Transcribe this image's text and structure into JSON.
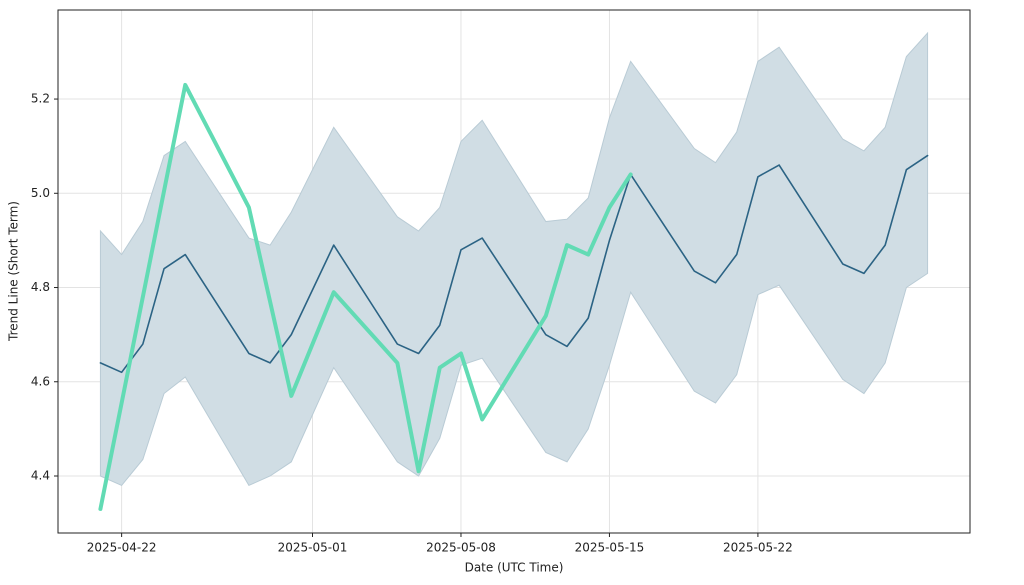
{
  "chart_data": {
    "type": "line",
    "x_label": "Date (UTC Time)",
    "y_label": "Trend Line (Short Term)",
    "x": [
      "2025-04-21",
      "2025-04-22",
      "2025-04-23",
      "2025-04-24",
      "2025-04-25",
      "2025-04-28",
      "2025-04-29",
      "2025-04-30",
      "2025-05-02",
      "2025-05-05",
      "2025-05-06",
      "2025-05-07",
      "2025-05-08",
      "2025-05-09",
      "2025-05-12",
      "2025-05-13",
      "2025-05-14",
      "2025-05-15",
      "2025-05-16",
      "2025-05-19",
      "2025-05-20",
      "2025-05-21",
      "2025-05-22",
      "2025-05-23",
      "2025-05-26",
      "2025-05-27",
      "2025-05-28",
      "2025-05-29",
      "2025-05-30"
    ],
    "band": {
      "color": "#d0dde4",
      "upper": [
        4.92,
        4.87,
        4.94,
        5.08,
        5.11,
        4.905,
        4.89,
        4.96,
        5.14,
        4.95,
        4.92,
        4.97,
        5.11,
        5.155,
        4.94,
        4.945,
        4.99,
        5.16,
        5.28,
        5.095,
        5.065,
        5.13,
        5.28,
        5.31,
        5.115,
        5.09,
        5.14,
        5.29,
        5.34
      ],
      "lower": [
        4.4,
        4.38,
        4.435,
        4.575,
        4.61,
        4.38,
        4.4,
        4.43,
        4.63,
        4.43,
        4.4,
        4.48,
        4.635,
        4.65,
        4.45,
        4.43,
        4.5,
        4.635,
        4.79,
        4.58,
        4.555,
        4.615,
        4.785,
        4.805,
        4.605,
        4.575,
        4.64,
        4.8,
        4.83
      ]
    },
    "series": [
      {
        "color": "#2b6384",
        "width": 1.6,
        "values": [
          4.64,
          4.62,
          4.68,
          4.84,
          4.87,
          4.66,
          4.64,
          4.7,
          4.89,
          4.68,
          4.66,
          4.72,
          4.88,
          4.905,
          4.7,
          4.675,
          4.735,
          4.9,
          5.04,
          4.835,
          4.81,
          4.87,
          5.035,
          5.06,
          4.85,
          4.83,
          4.89,
          5.05,
          5.08
        ]
      },
      {
        "color": "#62dbb4",
        "width": 4,
        "x": [
          "2025-04-21",
          "2025-04-25",
          "2025-04-28",
          "2025-04-30",
          "2025-05-02",
          "2025-05-05",
          "2025-05-06",
          "2025-05-07",
          "2025-05-08",
          "2025-05-09",
          "2025-05-12",
          "2025-05-13",
          "2025-05-14",
          "2025-05-15",
          "2025-05-16"
        ],
        "values": [
          4.33,
          5.23,
          4.97,
          4.57,
          4.79,
          4.64,
          4.41,
          4.63,
          4.66,
          4.52,
          4.74,
          4.89,
          4.87,
          4.97,
          5.04
        ]
      }
    ],
    "xlim": [
      "2025-04-19",
      "2025-06-01"
    ],
    "xticks": [
      "2025-04-22",
      "2025-05-01",
      "2025-05-08",
      "2025-05-15",
      "2025-05-22"
    ],
    "ylim": [
      4.279,
      5.389
    ],
    "yticks": [
      4.4,
      4.6,
      4.8,
      {
        "value": 5,
        "label": "5.0"
      },
      5.2
    ],
    "grid": true
  }
}
